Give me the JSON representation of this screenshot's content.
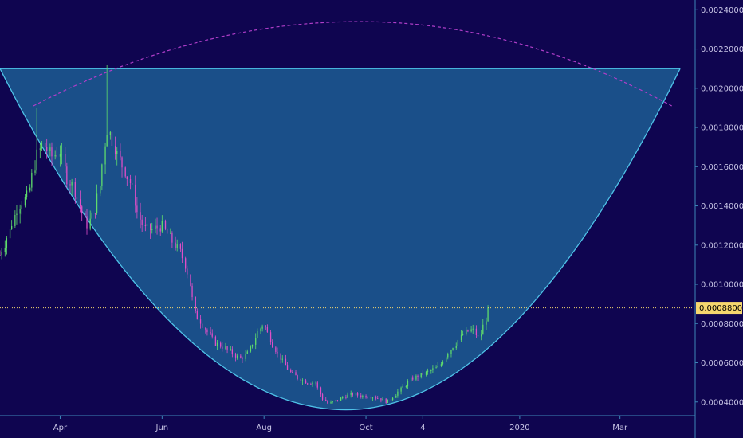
{
  "chart_data": {
    "type": "candlestick",
    "title": "",
    "xlabel": "",
    "ylabel": "",
    "ylim": [
      0.00033,
      0.00245
    ],
    "y_ticks": [
      {
        "value": 0.0024,
        "label": "0.0024000"
      },
      {
        "value": 0.0022,
        "label": "0.0022000"
      },
      {
        "value": 0.002,
        "label": "0.0020000"
      },
      {
        "value": 0.0018,
        "label": "0.0018000"
      },
      {
        "value": 0.0016,
        "label": "0.0016000"
      },
      {
        "value": 0.0014,
        "label": "0.0014000"
      },
      {
        "value": 0.0012,
        "label": "0.0012000"
      },
      {
        "value": 0.001,
        "label": "0.0010000"
      },
      {
        "value": 0.0008,
        "label": "0.0008000"
      },
      {
        "value": 0.0006,
        "label": "0.0006000"
      },
      {
        "value": 0.0004,
        "label": "0.0004000"
      }
    ],
    "x_range": [
      "2019-02-24",
      "2020-04-15"
    ],
    "x_ticks": [
      {
        "date": "2019-04-01",
        "label": "Apr"
      },
      {
        "date": "2019-06-01",
        "label": "Jun"
      },
      {
        "date": "2019-08-01",
        "label": "Aug"
      },
      {
        "date": "2019-10-01",
        "label": "Oct"
      },
      {
        "date": "2019-11-04",
        "label": "4"
      },
      {
        "date": "2020-01-01",
        "label": "2020"
      },
      {
        "date": "2020-03-01",
        "label": "Mar"
      }
    ],
    "current_price": {
      "value": 0.00088,
      "label": "0.0008800"
    },
    "price_path": [
      [
        "2019-02-24",
        0.00115
      ],
      [
        "2019-03-01",
        0.00125
      ],
      [
        "2019-03-07",
        0.0014
      ],
      [
        "2019-03-13",
        0.00145
      ],
      [
        "2019-03-18",
        0.00165
      ],
      [
        "2019-03-22",
        0.00172
      ],
      [
        "2019-03-27",
        0.00165
      ],
      [
        "2019-04-01",
        0.00168
      ],
      [
        "2019-04-05",
        0.00155
      ],
      [
        "2019-04-09",
        0.0015
      ],
      [
        "2019-04-13",
        0.0014
      ],
      [
        "2019-04-17",
        0.0013
      ],
      [
        "2019-04-21",
        0.00135
      ],
      [
        "2019-04-25",
        0.0015
      ],
      [
        "2019-04-29",
        0.0018
      ],
      [
        "2019-05-02",
        0.00175
      ],
      [
        "2019-05-06",
        0.00165
      ],
      [
        "2019-05-10",
        0.00158
      ],
      [
        "2019-05-14",
        0.0015
      ],
      [
        "2019-05-18",
        0.00135
      ],
      [
        "2019-05-22",
        0.00128
      ],
      [
        "2019-05-27",
        0.00128
      ],
      [
        "2019-06-01",
        0.0013
      ],
      [
        "2019-06-05",
        0.00125
      ],
      [
        "2019-06-09",
        0.0012
      ],
      [
        "2019-06-13",
        0.00115
      ],
      [
        "2019-06-17",
        0.00105
      ],
      [
        "2019-06-21",
        0.00085
      ],
      [
        "2019-06-25",
        0.0008
      ],
      [
        "2019-06-29",
        0.00075
      ],
      [
        "2019-07-03",
        0.0007
      ],
      [
        "2019-07-08",
        0.00068
      ],
      [
        "2019-07-13",
        0.00065
      ],
      [
        "2019-07-18",
        0.00062
      ],
      [
        "2019-07-23",
        0.00065
      ],
      [
        "2019-07-28",
        0.00075
      ],
      [
        "2019-08-01",
        0.0008
      ],
      [
        "2019-08-05",
        0.00072
      ],
      [
        "2019-08-09",
        0.00065
      ],
      [
        "2019-08-13",
        0.0006
      ],
      [
        "2019-08-17",
        0.00055
      ],
      [
        "2019-08-22",
        0.00052
      ],
      [
        "2019-08-27",
        0.0005
      ],
      [
        "2019-09-01",
        0.0005
      ],
      [
        "2019-09-05",
        0.00042
      ],
      [
        "2019-09-09",
        0.00039
      ],
      [
        "2019-09-14",
        0.00041
      ],
      [
        "2019-09-19",
        0.00043
      ],
      [
        "2019-09-24",
        0.00044
      ],
      [
        "2019-09-29",
        0.00043
      ],
      [
        "2019-10-04",
        0.00043
      ],
      [
        "2019-10-09",
        0.00042
      ],
      [
        "2019-10-14",
        0.0004
      ],
      [
        "2019-10-19",
        0.00044
      ],
      [
        "2019-10-24",
        0.00048
      ],
      [
        "2019-10-29",
        0.00052
      ],
      [
        "2019-11-04",
        0.00054
      ],
      [
        "2019-11-09",
        0.00056
      ],
      [
        "2019-11-14",
        0.00058
      ],
      [
        "2019-11-19",
        0.00065
      ],
      [
        "2019-11-24",
        0.0007
      ],
      [
        "2019-11-29",
        0.00075
      ],
      [
        "2019-12-04",
        0.00077
      ],
      [
        "2019-12-08",
        0.00072
      ],
      [
        "2019-12-11",
        0.0008
      ],
      [
        "2019-12-14",
        0.00088
      ]
    ],
    "spikes": [
      {
        "date": "2019-03-18",
        "high": 0.0019
      },
      {
        "date": "2019-04-29",
        "high": 0.00212
      },
      {
        "date": "2019-08-01",
        "high": 0.0009
      },
      {
        "date": "2019-12-14",
        "high": 0.0009
      }
    ],
    "drawings": {
      "cup": {
        "left": [
          "2019-02-24",
          0.0021
        ],
        "bottom": [
          "2019-09-19",
          0.00036
        ],
        "right": [
          "2020-04-06",
          0.0021
        ],
        "rim_level": 0.0021,
        "fill_color": "#1c5d93",
        "line_color": "#4fc2e8"
      },
      "arc": {
        "left": [
          "2019-03-16",
          0.00191
        ],
        "peak": [
          "2019-09-27",
          0.00234
        ],
        "right": [
          "2020-04-01",
          0.00191
        ],
        "color": "#b03ec9"
      }
    },
    "colors": {
      "background": "#0f0550",
      "up_candle": "#5fdc6c",
      "down_candle": "#e04fc8",
      "axis_line": "#3d86b8",
      "price_line": "#f5d76e",
      "price_tag_bg": "#f5d76e"
    }
  }
}
